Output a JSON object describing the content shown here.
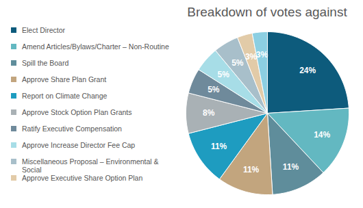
{
  "chart_data": {
    "type": "pie",
    "title": "Breakdown of votes against",
    "categories": [
      "Elect Director",
      "Amend Articles/Bylaws/Charter – Non-Routine",
      "Spill the Board",
      "Approve Share Plan Grant",
      "Report on Climate Change",
      "Approve Stock Option Plan Grants",
      "Ratify Executive Compensation",
      "Approve Increase Director Fee Cap",
      "Miscellaneous Proposal – Environmental & Social",
      "Approve Executive Share Option Plan",
      null
    ],
    "values": [
      24,
      14,
      11,
      11,
      11,
      8,
      5,
      5,
      5,
      3,
      3
    ],
    "value_labels": [
      "24%",
      "14%",
      "11%",
      "11%",
      "11%",
      "8%",
      "5%",
      "5%",
      "5%",
      "3%",
      "3%"
    ],
    "colors": [
      "#0d5b7c",
      "#63b8c1",
      "#5f8d9b",
      "#c2a57e",
      "#1e9cc0",
      "#a9b1b5",
      "#6f8a9b",
      "#a7dde7",
      "#a8bfca",
      "#e2cba8",
      "#8ccfe2"
    ],
    "data_labels": true,
    "legend": "left"
  }
}
